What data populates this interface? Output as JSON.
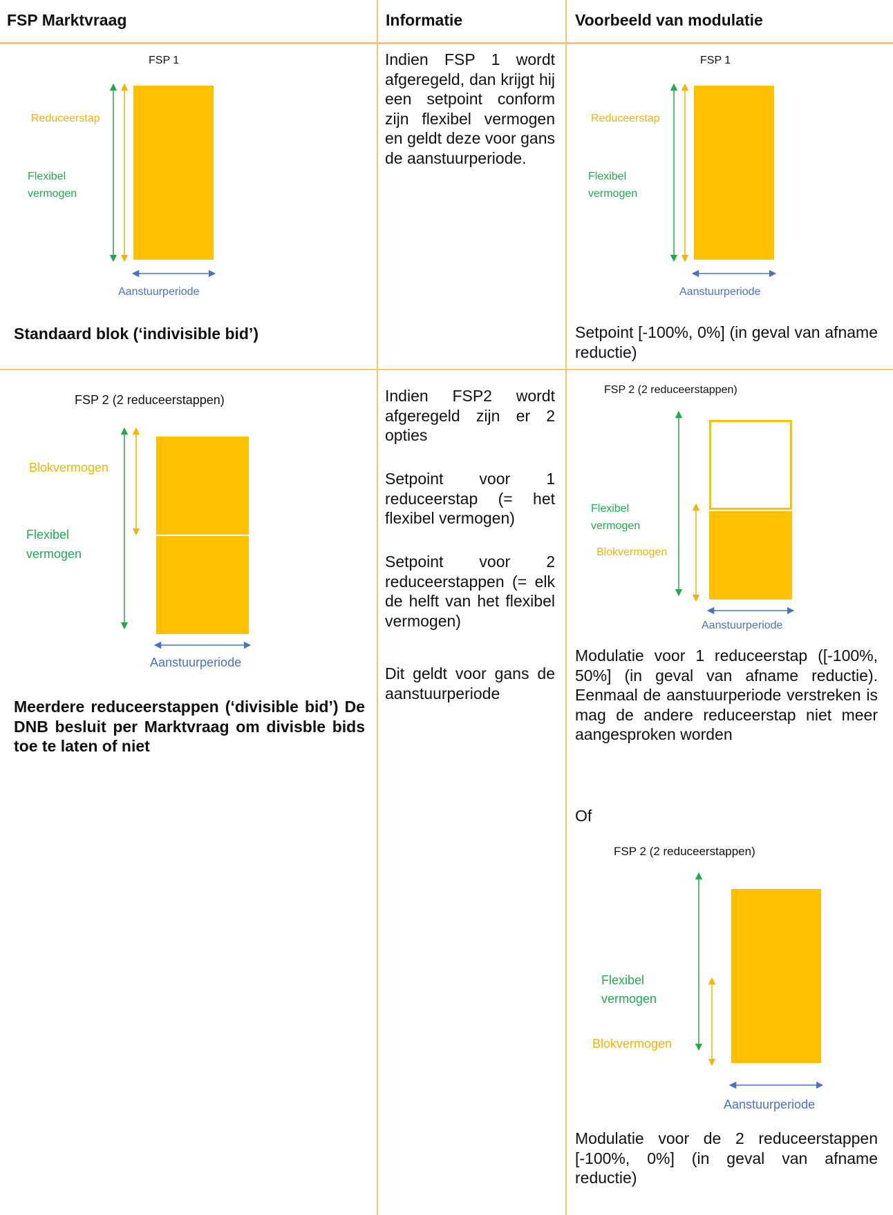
{
  "table": {
    "headers": [
      "FSP Marktvraag",
      "Informatie",
      "Voorbeeld van modulatie"
    ]
  },
  "row1": {
    "diagram": {
      "title": "FSP 1",
      "reduce_label": "Reduceerstap",
      "flex_label_1": "Flexibel",
      "flex_label_2": "vermogen",
      "period_label": "Aanstuurperiode"
    },
    "caption": "Standaard blok (‘indivisible bid’)",
    "info": "Indien FSP 1 wordt afgeregeld, dan krijgt hij een setpoint conform zijn flexibel vermogen en geldt deze voor gans de aanstuurperiode.",
    "example": {
      "title": "FSP 1",
      "reduce_label": "Reduceerstap",
      "flex_label_1": "Flexibel",
      "flex_label_2": "vermogen",
      "period_label": "Aanstuurperiode",
      "caption": "Setpoint [-100%, 0%] (in geval van afname reductie)"
    }
  },
  "row2": {
    "diagram": {
      "title": "FSP 2 (2 reduceerstappen)",
      "block_label": "Blokvermogen",
      "flex_label_1": "Flexibel",
      "flex_label_2": "vermogen",
      "period_label": "Aanstuurperiode"
    },
    "caption": "Meerdere reduceerstappen (‘divisible bid’) De DNB besluit per Marktvraag om divisble bids toe te laten of niet",
    "info": [
      "Indien FSP2 wordt afgeregeld zijn er 2 opties",
      "Setpoint voor 1 reduceerstap (= het flexibel vermogen)",
      "Setpoint voor 2 reduceerstappen (= elk de helft van het flexibel vermogen)",
      "Dit geldt voor gans de aanstuurperiode"
    ],
    "example1": {
      "title": "FSP 2 (2 reduceerstappen)",
      "flex_label_1": "Flexibel",
      "flex_label_2": "vermogen",
      "block_label": "Blokvermogen",
      "period_label": "Aanstuurperiode",
      "caption": "Modulatie voor 1 reduceerstap ([-100%, 50%] (in geval van afname reductie). Eenmaal de aanstuurperiode verstreken is mag de andere reduceerstap niet meer aangesproken worden"
    },
    "or_text": "Of",
    "example2": {
      "title": "FSP 2 (2 reduceerstappen)",
      "flex_label_1": "Flexibel",
      "flex_label_2": "vermogen",
      "block_label": "Blokvermogen",
      "period_label": "Aanstuurperiode",
      "caption": "Modulatie voor de 2 reduceerstappen [-100%, 0%] (in geval van afname reductie)"
    }
  },
  "colors": {
    "border": "#F9C46B",
    "block": "#FFC000",
    "flex": "#22AA4E",
    "reduce": "#F4B400",
    "period": "#4A72C4"
  }
}
